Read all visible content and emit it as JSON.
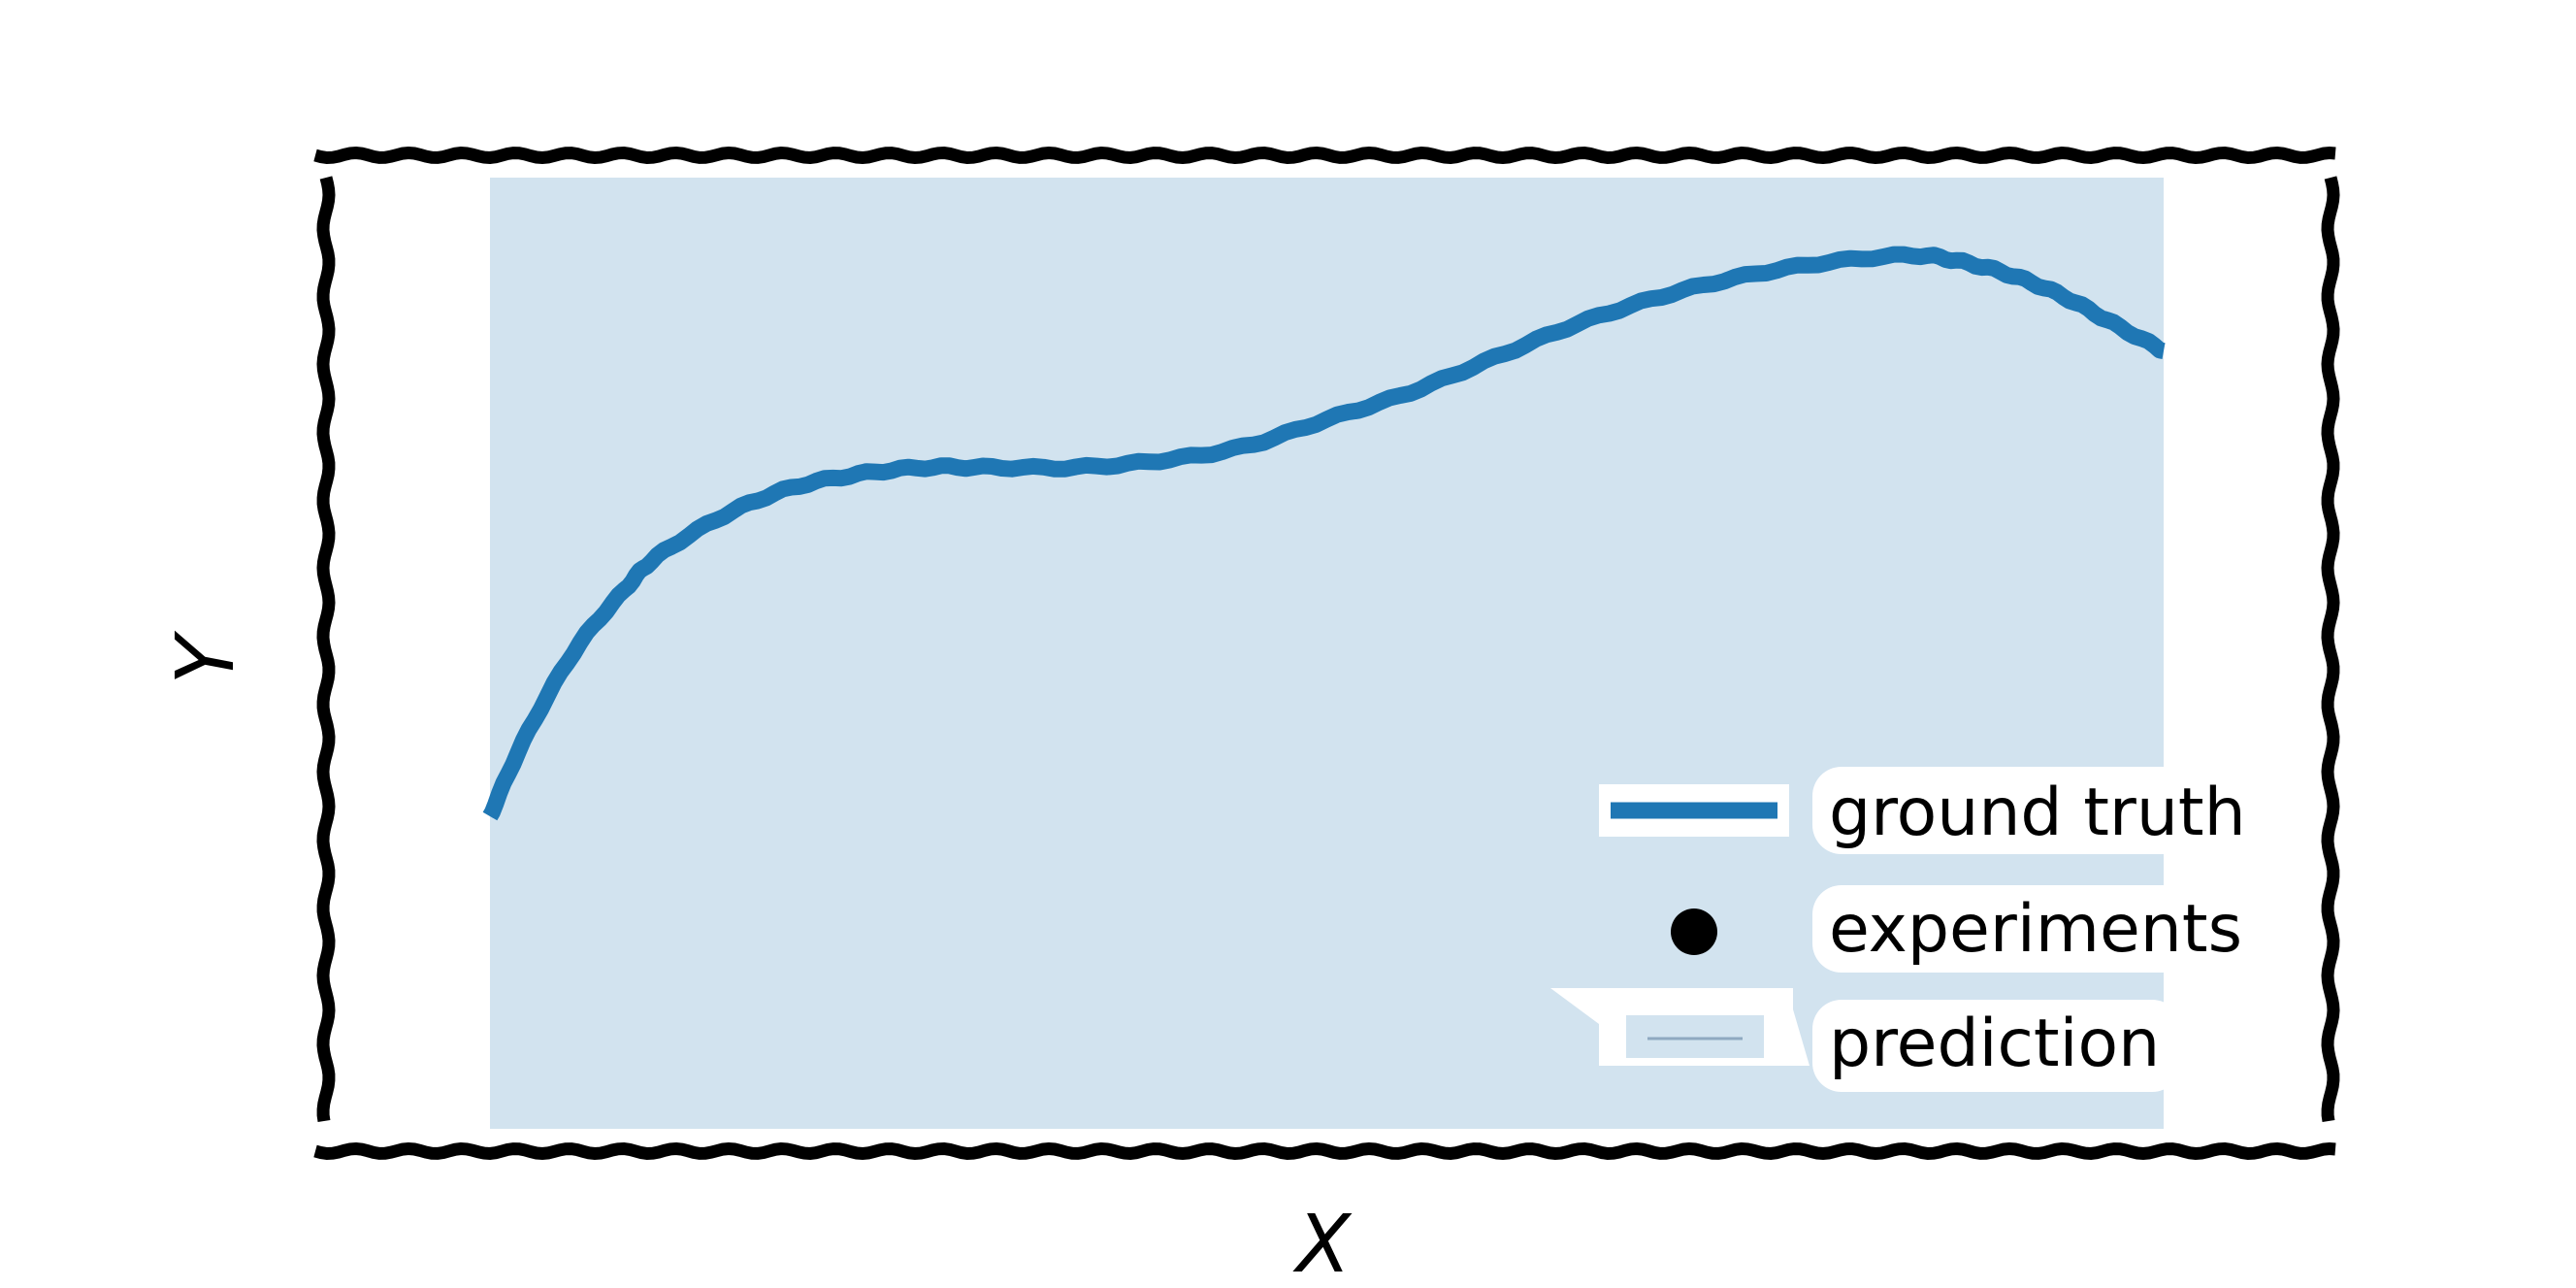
{
  "chart_data": {
    "type": "line",
    "title": "",
    "xlabel": "X",
    "ylabel": "Y",
    "xlim": [
      0,
      1
    ],
    "ylim": [
      0,
      1
    ],
    "grid": false,
    "ticks": "none",
    "style": "xkcd",
    "legend": {
      "placement": "lower-right",
      "entries": [
        {
          "label": "ground truth",
          "kind": "line"
        },
        {
          "label": "experiments",
          "kind": "marker"
        },
        {
          "label": "prediction",
          "kind": "band"
        }
      ]
    },
    "prediction_band": {
      "x_range": [
        0.0,
        1.0
      ],
      "lower": 0.0,
      "upper": 1.0
    },
    "series": [
      {
        "name": "ground truth",
        "x": [
          0.0,
          0.02,
          0.05,
          0.08,
          0.1,
          0.14,
          0.18,
          0.22,
          0.26,
          0.3,
          0.35,
          0.4,
          0.45,
          0.5,
          0.55,
          0.6,
          0.65,
          0.7,
          0.75,
          0.8,
          0.85,
          0.88,
          0.91,
          0.94,
          0.97,
          1.0
        ],
        "y": [
          0.19,
          0.3,
          0.43,
          0.52,
          0.57,
          0.63,
          0.67,
          0.69,
          0.7,
          0.7,
          0.7,
          0.71,
          0.73,
          0.77,
          0.81,
          0.86,
          0.91,
          0.95,
          0.98,
          1.0,
          1.01,
          1.0,
          0.98,
          0.95,
          0.91,
          0.87
        ]
      }
    ],
    "experiments": [],
    "colors": {
      "ground_truth": "#1f77b4",
      "prediction_band": "#d2e3ef",
      "experiments": "#000000",
      "frame": "#000000"
    }
  }
}
